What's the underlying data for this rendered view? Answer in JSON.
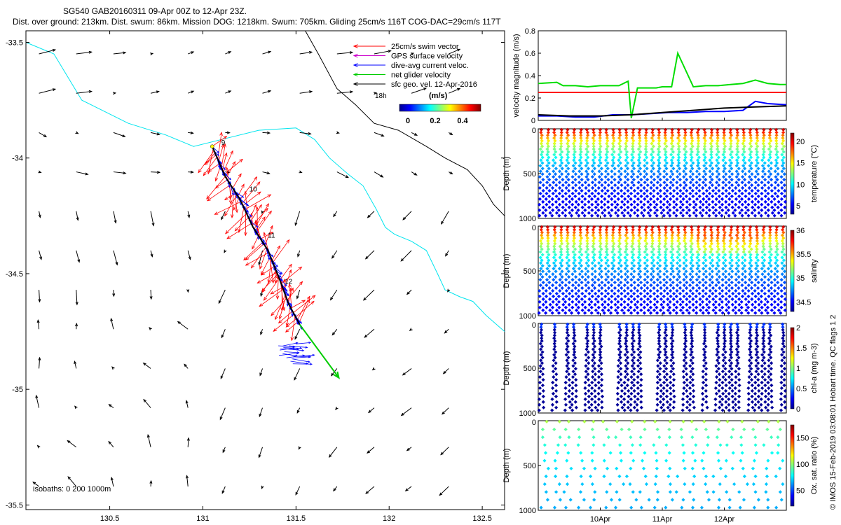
{
  "title_line1": "SG540 GAB20160311 09-Apr 00Z to 12-Apr 23Z.",
  "title_line2": "Dist. over ground: 213km. Dist. swum: 86km. Mission DOG: 1218km. Swum: 705km. Gliding 25cm/s 116T COG-DAC=29cm/s 117T",
  "footer_right": "© IMOS 15-Feb-2019 03:08:01 Hobart time. QC flags 1  2",
  "map": {
    "xlim": [
      130.05,
      132.62
    ],
    "ylim": [
      -35.52,
      -33.45
    ],
    "xticks": [
      130.5,
      131,
      131.5,
      132,
      132.5
    ],
    "yticks": [
      -33.5,
      -34,
      -34.5,
      -35,
      -35.5
    ],
    "legend": [
      {
        "label": "25cm/s swim vector",
        "color": "#ff0000"
      },
      {
        "label": "GPS surface velocity",
        "color": "#cc00cc"
      },
      {
        "label": "dive-avg current veloc.",
        "color": "#0000ff"
      },
      {
        "label": "net glider velocity",
        "color": "#00cc00"
      },
      {
        "label": "sfc geo. vel. 12-Apr-2016",
        "color": "#000000"
      }
    ],
    "legend_extra": "18h",
    "colorbar_label": "(m/s)",
    "colorbar_ticks": [
      "0",
      "0.2",
      "0.4"
    ],
    "isobath_text": "isobaths: 0   200  1000m",
    "day_labels": [
      {
        "text": "9",
        "lon": 131.08,
        "lat": -33.95
      },
      {
        "text": "10",
        "lon": 131.23,
        "lat": -34.15
      },
      {
        "text": "11",
        "lon": 131.33,
        "lat": -34.35
      },
      {
        "text": "12",
        "lon": 131.42,
        "lat": -34.55
      }
    ],
    "track": [
      [
        131.05,
        -33.95
      ],
      [
        131.12,
        -34.08
      ],
      [
        131.2,
        -34.18
      ],
      [
        131.27,
        -34.3
      ],
      [
        131.35,
        -34.4
      ],
      [
        131.41,
        -34.52
      ],
      [
        131.46,
        -34.63
      ],
      [
        131.52,
        -34.72
      ]
    ],
    "net_velocity_end": [
      131.73,
      -34.95
    ],
    "isobath_200": [
      [
        130.05,
        -33.5
      ],
      [
        130.2,
        -33.55
      ],
      [
        130.35,
        -33.75
      ],
      [
        130.6,
        -33.85
      ],
      [
        130.8,
        -33.9
      ],
      [
        130.95,
        -33.95
      ],
      [
        131.1,
        -33.92
      ],
      [
        131.3,
        -33.88
      ],
      [
        131.5,
        -33.87
      ],
      [
        131.6,
        -33.92
      ],
      [
        131.68,
        -34.0
      ],
      [
        131.78,
        -34.07
      ],
      [
        131.86,
        -34.12
      ],
      [
        131.93,
        -34.22
      ],
      [
        131.98,
        -34.3
      ],
      [
        132.03,
        -34.33
      ],
      [
        132.12,
        -34.36
      ],
      [
        132.2,
        -34.4
      ],
      [
        132.26,
        -34.5
      ],
      [
        132.3,
        -34.57
      ],
      [
        132.38,
        -34.6
      ],
      [
        132.45,
        -34.62
      ],
      [
        132.52,
        -34.68
      ],
      [
        132.62,
        -34.75
      ]
    ],
    "isobath_1000": [
      [
        131.55,
        -33.45
      ],
      [
        131.62,
        -33.55
      ],
      [
        131.72,
        -33.7
      ],
      [
        131.82,
        -33.77
      ],
      [
        131.92,
        -33.85
      ],
      [
        132.05,
        -33.88
      ],
      [
        132.2,
        -33.95
      ],
      [
        132.3,
        -34.0
      ],
      [
        132.42,
        -34.05
      ],
      [
        132.5,
        -34.12
      ],
      [
        132.56,
        -34.2
      ],
      [
        132.62,
        -34.25
      ]
    ]
  },
  "panels": {
    "xlim_days": [
      9.0,
      13.0
    ],
    "x_tick_labels": [
      "10Apr",
      "11Apr",
      "12Apr"
    ],
    "x_tick_days": [
      10,
      11,
      12
    ],
    "velocity": {
      "ylabel": "velocity magnitude (m/s)",
      "ylim": [
        0,
        0.8
      ],
      "yticks": [
        0,
        0.2,
        0.4,
        0.6,
        0.8
      ],
      "swim_speed": 0.25,
      "series": [
        {
          "name": "net glider velocity",
          "color": "#00dd00",
          "x": [
            9.0,
            9.3,
            9.4,
            9.6,
            9.8,
            10.0,
            10.3,
            10.45,
            10.5,
            10.6,
            10.9,
            11.0,
            11.15,
            11.25,
            11.5,
            11.7,
            11.9,
            12.1,
            12.3,
            12.5,
            12.7,
            12.9,
            13.0
          ],
          "values": [
            0.33,
            0.34,
            0.31,
            0.31,
            0.3,
            0.31,
            0.31,
            0.35,
            0.02,
            0.29,
            0.29,
            0.3,
            0.3,
            0.6,
            0.3,
            0.31,
            0.31,
            0.32,
            0.33,
            0.36,
            0.33,
            0.32,
            0.32
          ]
        },
        {
          "name": "dive-avg current veloc.",
          "color": "#0000ff",
          "x": [
            9.0,
            9.3,
            9.6,
            9.9,
            10.2,
            10.5,
            10.8,
            11.1,
            11.4,
            11.7,
            12.0,
            12.3,
            12.5,
            12.7,
            13.0
          ],
          "values": [
            0.04,
            0.04,
            0.03,
            0.03,
            0.05,
            0.05,
            0.06,
            0.07,
            0.07,
            0.08,
            0.08,
            0.09,
            0.17,
            0.15,
            0.14
          ]
        },
        {
          "name": "sfc geo. vel.",
          "color": "#000000",
          "x": [
            9.0,
            9.5,
            10.0,
            10.5,
            11.0,
            11.5,
            12.0,
            12.5,
            13.0
          ],
          "values": [
            0.05,
            0.04,
            0.04,
            0.05,
            0.07,
            0.09,
            0.11,
            0.12,
            0.13
          ]
        }
      ]
    },
    "profiles": [
      {
        "ylabel": "Depth (m)",
        "cbar_label": "temperature (°C)",
        "cbar_ticks": [
          5,
          10,
          15,
          20
        ],
        "cmin": 3,
        "cmax": 22,
        "surface": 21,
        "deep": 4,
        "mode": "temperature",
        "flagged": false
      },
      {
        "ylabel": "Depth (m)",
        "cbar_label": "salinity",
        "cbar_ticks": [
          34.5,
          35,
          35.5,
          36
        ],
        "cmin": 34.3,
        "cmax": 36.0,
        "surface": 35.9,
        "deep": 34.4,
        "mode": "salinity",
        "flagged": false
      },
      {
        "ylabel": "Depth (m)",
        "cbar_label": "chl-a (mg m-3)",
        "cbar_ticks": [
          0,
          0.5,
          1,
          1.5,
          2
        ],
        "cmin": 0,
        "cmax": 2,
        "surface": 0.1,
        "deep": 0.05,
        "mode": "chla",
        "flagged": true
      },
      {
        "ylabel": "Depth (m)",
        "cbar_label": "Ox. sat. ratio (%)",
        "cbar_ticks": [
          50,
          100,
          150
        ],
        "cmin": 20,
        "cmax": 175,
        "surface": 100,
        "deep": 60,
        "mode": "oxygen",
        "flagged": false
      }
    ],
    "depth_ticks": [
      0,
      500,
      1000
    ],
    "depth_max": 1000
  }
}
